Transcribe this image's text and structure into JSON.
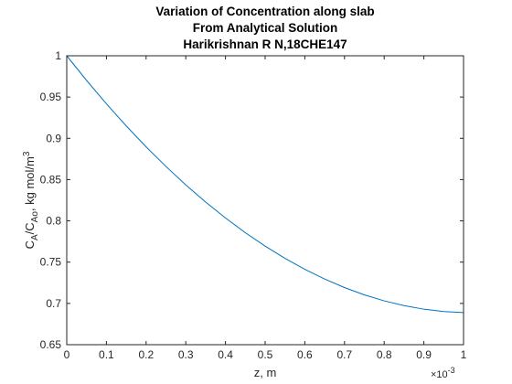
{
  "chart_data": {
    "type": "line",
    "title": [
      "Variation of Concentration along slab",
      "From Analytical Solution",
      "Harikrishnan R N,18CHE147"
    ],
    "xlabel": "z, m",
    "ylabel": {
      "c": "C",
      "a": "A",
      "slash": "/C",
      "ao": "Ao",
      "units": ", kg mol/m",
      "exp": "3"
    },
    "x_exponent": {
      "base": "×10",
      "exp": "-3"
    },
    "xlim": [
      0,
      0.001
    ],
    "ylim": [
      0.65,
      1
    ],
    "x_ticks": [
      0,
      0.0001,
      0.0002,
      0.0003,
      0.0004,
      0.0005,
      0.0006,
      0.0007,
      0.0008,
      0.0009,
      0.001
    ],
    "x_tick_labels": [
      "0",
      "0.1",
      "0.2",
      "0.3",
      "0.4",
      "0.5",
      "0.6",
      "0.7",
      "0.8",
      "0.9",
      "1"
    ],
    "y_ticks": [
      0.65,
      0.7,
      0.75,
      0.8,
      0.85,
      0.9,
      0.95,
      1
    ],
    "y_tick_labels": [
      "0.65",
      "0.7",
      "0.75",
      "0.8",
      "0.85",
      "0.9",
      "0.95",
      "1"
    ],
    "grid": false,
    "box": true,
    "line_color": "#0072bd",
    "axis_color": "#262626",
    "series": [
      {
        "x": [
          0,
          5e-05,
          0.0001,
          0.00015,
          0.0002,
          0.00025,
          0.0003,
          0.00035,
          0.0004,
          0.00045,
          0.0005,
          0.00055,
          0.0006,
          0.00065,
          0.0007,
          0.00075,
          0.0008,
          0.00085,
          0.0009,
          0.00095,
          0.001
        ],
        "y": [
          1.0,
          0.9701,
          0.9418,
          0.915,
          0.8897,
          0.8659,
          0.8436,
          0.8228,
          0.8035,
          0.7857,
          0.7694,
          0.7546,
          0.7413,
          0.7295,
          0.7192,
          0.7104,
          0.7031,
          0.6973,
          0.693,
          0.6902,
          0.6889
        ]
      }
    ]
  }
}
